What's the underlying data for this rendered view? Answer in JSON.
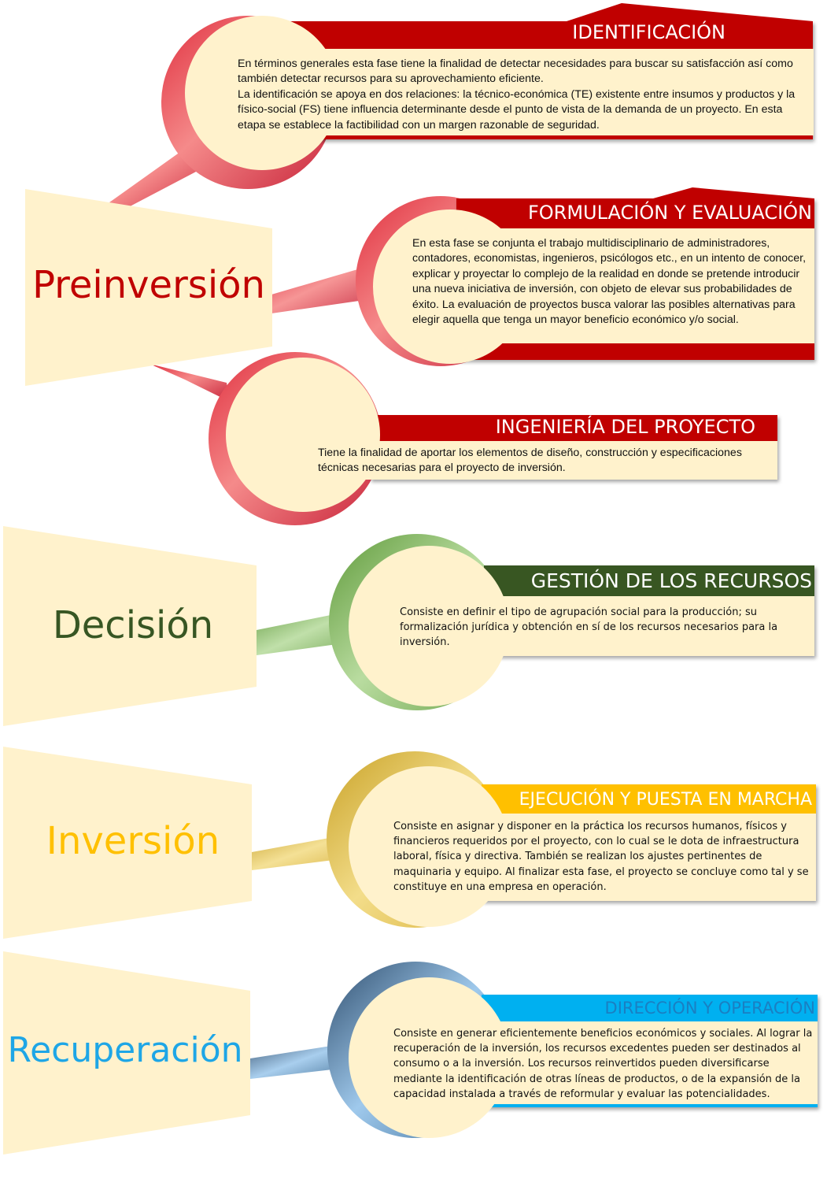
{
  "colors": {
    "red": "#c00000",
    "green": "#375623",
    "gold": "#ffc000",
    "blue": "#00b0f0",
    "cream": "#fff2cc"
  },
  "phases": {
    "preinversion": "Preinversión",
    "decision": "Decisión",
    "inversion": "Inversión",
    "recuperacion": "Recuperación"
  },
  "steps": {
    "identificacion": {
      "title": "IDENTIFICACIÓN",
      "text": "En términos generales esta fase tiene la finalidad de detectar necesidades para buscar su satisfacción así como también detectar recursos para su aprovechamiento eficiente.\nLa identificación se apoya en dos relaciones: la técnico-económica (TE) existente entre insumos y productos y la físico-social (FS) tiene influencia determinante desde el punto de vista de la demanda de un proyecto. En esta etapa se establece la factibilidad con un margen razonable de seguridad."
    },
    "formulacion": {
      "title": "FORMULACIÓN Y EVALUACIÓN",
      "text": "En esta fase se conjunta el trabajo multidisciplinario de administradores, contadores, economistas, ingenieros, psicólogos etc., en un intento de conocer, explicar y proyectar lo complejo de la realidad en donde se pretende introducir una nueva iniciativa de inversión, con objeto de elevar sus probabilidades de éxito. La evaluación de proyectos busca valorar las posibles alternativas para elegir aquella que tenga un mayor beneficio económico y/o social."
    },
    "ingenieria": {
      "title": "INGENIERÍA DEL PROYECTO",
      "text": "Tiene la finalidad de aportar los elementos de diseño, construcción y especificaciones técnicas necesarias para el proyecto de inversión."
    },
    "gestion": {
      "title": "GESTIÓN DE LOS RECURSOS",
      "text": "Consiste en definir el tipo de agrupación social para la producción; su formalización jurídica y obtención en sí de los recursos necesarios para la inversión."
    },
    "ejecucion": {
      "title": "EJECUCIÓN Y PUESTA EN MARCHA",
      "text": "Consiste en asignar y disponer en la práctica los recursos humanos, físicos y financieros requeridos por el proyecto, con lo cual se le dota de infraestructura laboral, física y directiva. También se realizan los ajustes pertinentes de maquinaria y equipo. Al finalizar esta fase, el proyecto se concluye como tal y se constituye en una empresa en operación."
    },
    "direccion": {
      "title": "DIRECCIÓN Y OPERACIÓN",
      "text": "Consiste en generar eficientemente beneficios económicos y sociales. Al lograr la recuperación de la inversión, los recursos excedentes pueden ser destinados al consumo o a la inversión. Los recursos reinvertidos pueden diversificarse mediante la identificación de otras líneas de productos, o de la expansión de la capacidad instalada a través de reformular y evaluar las potencialidades."
    }
  }
}
